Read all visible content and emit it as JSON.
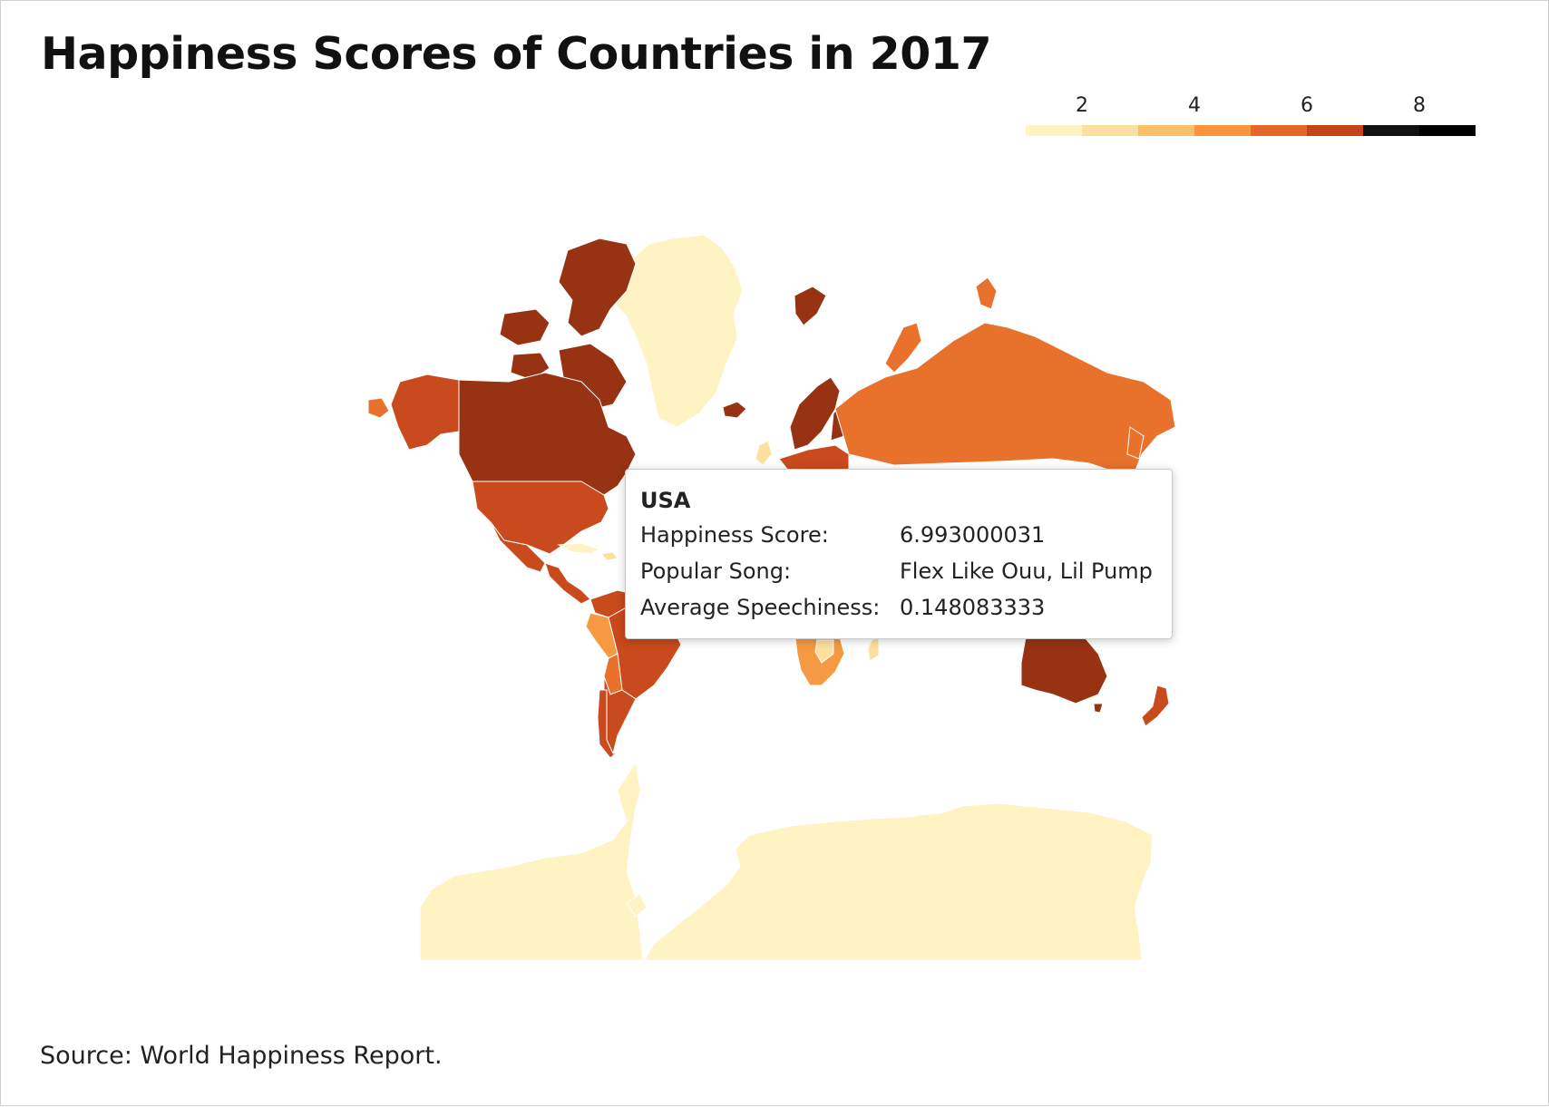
{
  "title": "Happiness Scores of Countries in 2017",
  "source": "Source: World Happiness Report.",
  "legend": {
    "ticks": [
      "2",
      "4",
      "6",
      "8"
    ],
    "colors": [
      "#fff3c4",
      "#fde0a0",
      "#fbbf6a",
      "#f8963c",
      "#e5682a",
      "#c44418",
      "#111111",
      "#000000"
    ]
  },
  "map": {
    "projection": "mercator",
    "colors": {
      "no_data": "#fff3c4",
      "dark": "#973313",
      "red": "#c84a1d",
      "orange": "#e8712c",
      "light_orange": "#f59a43",
      "pale": "#fde0a0"
    }
  },
  "tooltip": {
    "country": "USA",
    "rows": [
      {
        "label": "Happiness Score:",
        "value": "6.993000031"
      },
      {
        "label": "Popular Song:",
        "value": "Flex Like Ouu, Lil Pump"
      },
      {
        "label": "Average Speechiness:",
        "value": "0.148083333"
      }
    ]
  }
}
